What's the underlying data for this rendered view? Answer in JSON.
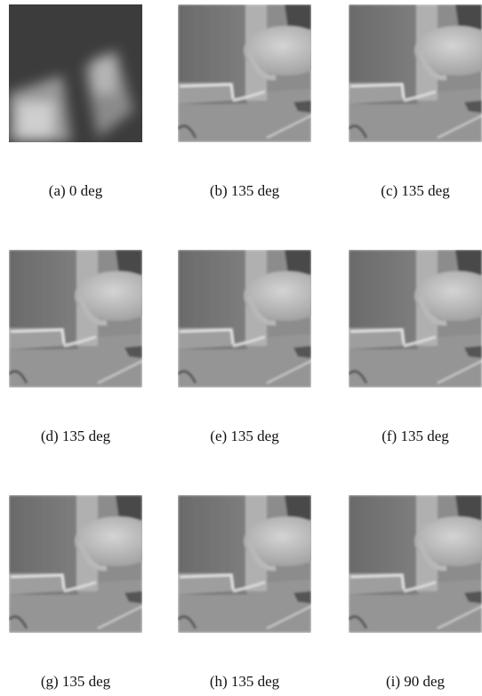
{
  "panels": [
    {
      "caption": "(a) 0 deg"
    },
    {
      "caption": "(b) 135 deg"
    },
    {
      "caption": "(c) 135 deg"
    },
    {
      "caption": "(d) 135 deg"
    },
    {
      "caption": "(e) 135 deg"
    },
    {
      "caption": "(f) 135 deg"
    },
    {
      "caption": "(g) 135 deg"
    },
    {
      "caption": "(h) 135 deg"
    },
    {
      "caption": "(i) 90 deg"
    }
  ]
}
